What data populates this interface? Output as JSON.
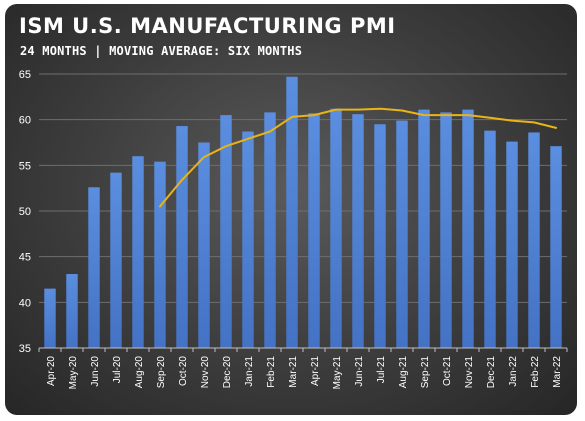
{
  "chart_data": {
    "type": "bar",
    "title": "ISM U.S. MANUFACTURING PMI",
    "subtitle": "24 MONTHS | MOVING AVERAGE: SIX MONTHS",
    "xlabel": "",
    "ylabel": "",
    "ylim": [
      35,
      65
    ],
    "yticks": [
      "35",
      "40",
      "45",
      "50",
      "55",
      "60",
      "65"
    ],
    "grid": true,
    "legend": "none",
    "categories": [
      "Apr-20",
      "May-20",
      "Jun-20",
      "Jul-20",
      "Aug-20",
      "Sep-20",
      "Oct-20",
      "Nov-20",
      "Dec-20",
      "Jan-21",
      "Feb-21",
      "Mar-21",
      "Apr-21",
      "May-21",
      "Jun-21",
      "Jul-21",
      "Aug-21",
      "Sep-21",
      "Oct-21",
      "Nov-21",
      "Dec-21",
      "Jan-22",
      "Feb-22",
      "Mar-22"
    ],
    "series": [
      {
        "type": "bar",
        "color": "#4472c4",
        "values": [
          41.5,
          43.1,
          52.6,
          54.2,
          56.0,
          55.4,
          59.3,
          57.5,
          60.5,
          58.7,
          60.8,
          64.7,
          60.7,
          61.2,
          60.6,
          59.5,
          59.9,
          61.1,
          60.8,
          61.1,
          58.8,
          57.6,
          58.6,
          57.1
        ]
      },
      {
        "type": "line",
        "color": "#e8b418",
        "values": [
          null,
          null,
          null,
          null,
          null,
          50.5,
          53.4,
          55.9,
          57.1,
          57.9,
          58.7,
          60.3,
          60.5,
          61.1,
          61.1,
          61.2,
          61.0,
          60.5,
          60.5,
          60.5,
          60.2,
          59.9,
          59.7,
          59.1
        ]
      }
    ],
    "colors": {
      "background": "#3c3c3c",
      "text": "#ffffff",
      "gridline": "#6e6e6e",
      "axis_line": "#bfbfbf"
    }
  }
}
